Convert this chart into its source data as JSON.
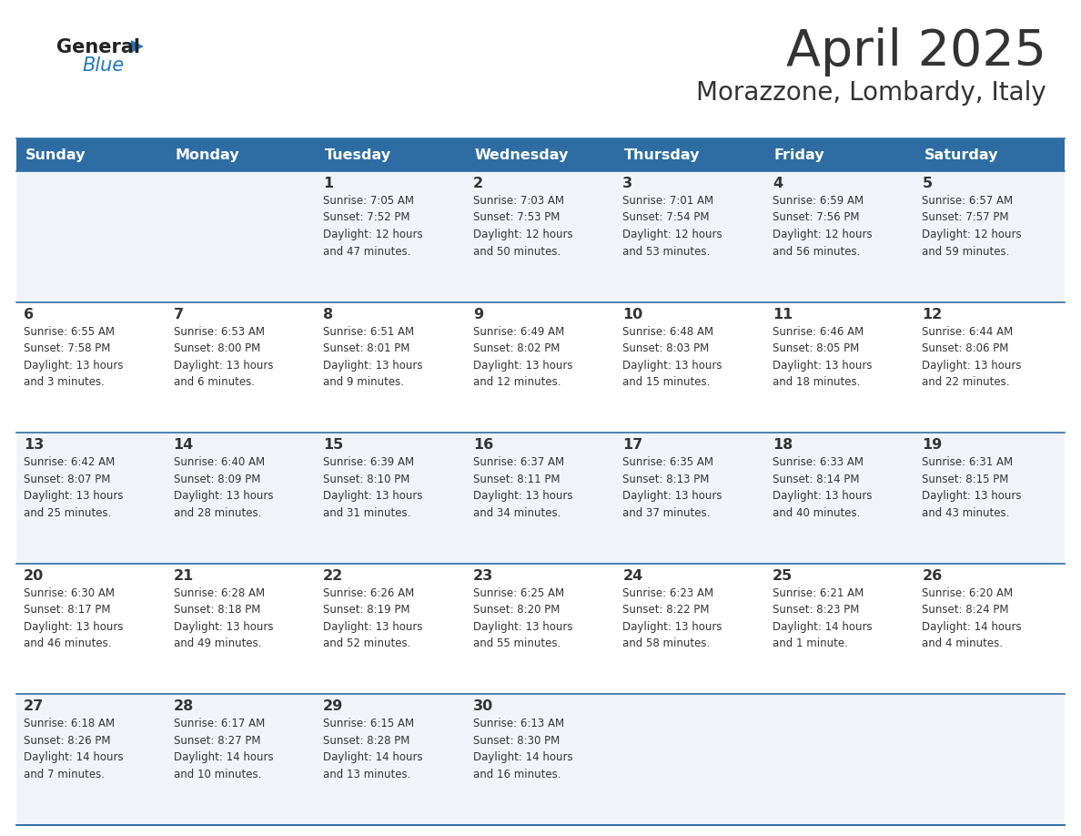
{
  "title": "April 2025",
  "subtitle": "Morazzone, Lombardy, Italy",
  "header_color": "#2E6DA4",
  "header_text_color": "#FFFFFF",
  "days_of_week": [
    "Sunday",
    "Monday",
    "Tuesday",
    "Wednesday",
    "Thursday",
    "Friday",
    "Saturday"
  ],
  "row_bg_odd": "#F0F4F8",
  "row_bg_even": "#FFFFFF",
  "cell_border_color": "#2E6DA4",
  "text_color": "#333333",
  "logo_general_color": "#222222",
  "logo_blue_color": "#2278C0",
  "weeks": [
    {
      "days": [
        {
          "day": "",
          "info": ""
        },
        {
          "day": "",
          "info": ""
        },
        {
          "day": "1",
          "info": "Sunrise: 7:05 AM\nSunset: 7:52 PM\nDaylight: 12 hours\nand 47 minutes."
        },
        {
          "day": "2",
          "info": "Sunrise: 7:03 AM\nSunset: 7:53 PM\nDaylight: 12 hours\nand 50 minutes."
        },
        {
          "day": "3",
          "info": "Sunrise: 7:01 AM\nSunset: 7:54 PM\nDaylight: 12 hours\nand 53 minutes."
        },
        {
          "day": "4",
          "info": "Sunrise: 6:59 AM\nSunset: 7:56 PM\nDaylight: 12 hours\nand 56 minutes."
        },
        {
          "day": "5",
          "info": "Sunrise: 6:57 AM\nSunset: 7:57 PM\nDaylight: 12 hours\nand 59 minutes."
        }
      ]
    },
    {
      "days": [
        {
          "day": "6",
          "info": "Sunrise: 6:55 AM\nSunset: 7:58 PM\nDaylight: 13 hours\nand 3 minutes."
        },
        {
          "day": "7",
          "info": "Sunrise: 6:53 AM\nSunset: 8:00 PM\nDaylight: 13 hours\nand 6 minutes."
        },
        {
          "day": "8",
          "info": "Sunrise: 6:51 AM\nSunset: 8:01 PM\nDaylight: 13 hours\nand 9 minutes."
        },
        {
          "day": "9",
          "info": "Sunrise: 6:49 AM\nSunset: 8:02 PM\nDaylight: 13 hours\nand 12 minutes."
        },
        {
          "day": "10",
          "info": "Sunrise: 6:48 AM\nSunset: 8:03 PM\nDaylight: 13 hours\nand 15 minutes."
        },
        {
          "day": "11",
          "info": "Sunrise: 6:46 AM\nSunset: 8:05 PM\nDaylight: 13 hours\nand 18 minutes."
        },
        {
          "day": "12",
          "info": "Sunrise: 6:44 AM\nSunset: 8:06 PM\nDaylight: 13 hours\nand 22 minutes."
        }
      ]
    },
    {
      "days": [
        {
          "day": "13",
          "info": "Sunrise: 6:42 AM\nSunset: 8:07 PM\nDaylight: 13 hours\nand 25 minutes."
        },
        {
          "day": "14",
          "info": "Sunrise: 6:40 AM\nSunset: 8:09 PM\nDaylight: 13 hours\nand 28 minutes."
        },
        {
          "day": "15",
          "info": "Sunrise: 6:39 AM\nSunset: 8:10 PM\nDaylight: 13 hours\nand 31 minutes."
        },
        {
          "day": "16",
          "info": "Sunrise: 6:37 AM\nSunset: 8:11 PM\nDaylight: 13 hours\nand 34 minutes."
        },
        {
          "day": "17",
          "info": "Sunrise: 6:35 AM\nSunset: 8:13 PM\nDaylight: 13 hours\nand 37 minutes."
        },
        {
          "day": "18",
          "info": "Sunrise: 6:33 AM\nSunset: 8:14 PM\nDaylight: 13 hours\nand 40 minutes."
        },
        {
          "day": "19",
          "info": "Sunrise: 6:31 AM\nSunset: 8:15 PM\nDaylight: 13 hours\nand 43 minutes."
        }
      ]
    },
    {
      "days": [
        {
          "day": "20",
          "info": "Sunrise: 6:30 AM\nSunset: 8:17 PM\nDaylight: 13 hours\nand 46 minutes."
        },
        {
          "day": "21",
          "info": "Sunrise: 6:28 AM\nSunset: 8:18 PM\nDaylight: 13 hours\nand 49 minutes."
        },
        {
          "day": "22",
          "info": "Sunrise: 6:26 AM\nSunset: 8:19 PM\nDaylight: 13 hours\nand 52 minutes."
        },
        {
          "day": "23",
          "info": "Sunrise: 6:25 AM\nSunset: 8:20 PM\nDaylight: 13 hours\nand 55 minutes."
        },
        {
          "day": "24",
          "info": "Sunrise: 6:23 AM\nSunset: 8:22 PM\nDaylight: 13 hours\nand 58 minutes."
        },
        {
          "day": "25",
          "info": "Sunrise: 6:21 AM\nSunset: 8:23 PM\nDaylight: 14 hours\nand 1 minute."
        },
        {
          "day": "26",
          "info": "Sunrise: 6:20 AM\nSunset: 8:24 PM\nDaylight: 14 hours\nand 4 minutes."
        }
      ]
    },
    {
      "days": [
        {
          "day": "27",
          "info": "Sunrise: 6:18 AM\nSunset: 8:26 PM\nDaylight: 14 hours\nand 7 minutes."
        },
        {
          "day": "28",
          "info": "Sunrise: 6:17 AM\nSunset: 8:27 PM\nDaylight: 14 hours\nand 10 minutes."
        },
        {
          "day": "29",
          "info": "Sunrise: 6:15 AM\nSunset: 8:28 PM\nDaylight: 14 hours\nand 13 minutes."
        },
        {
          "day": "30",
          "info": "Sunrise: 6:13 AM\nSunset: 8:30 PM\nDaylight: 14 hours\nand 16 minutes."
        },
        {
          "day": "",
          "info": ""
        },
        {
          "day": "",
          "info": ""
        },
        {
          "day": "",
          "info": ""
        }
      ]
    }
  ]
}
